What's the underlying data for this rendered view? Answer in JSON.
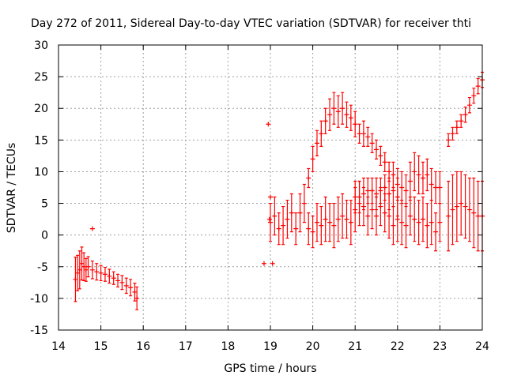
{
  "chart_data": {
    "type": "scatter",
    "title": "Day 272 of 2011, Sidereal Day-to-day VTEC variation (SDTVAR) for receiver thti",
    "xlabel": "GPS time / hours",
    "ylabel": "SDTVAR / TECUs",
    "xlim": [
      14,
      24
    ],
    "ylim": [
      -15,
      30
    ],
    "x_ticks": [
      "14",
      "15",
      "16",
      "17",
      "18",
      "19",
      "20",
      "21",
      "22",
      "23",
      "24"
    ],
    "y_ticks": [
      "-15",
      "-10",
      "-5",
      "0",
      "5",
      "10",
      "15",
      "20",
      "25",
      "30"
    ],
    "grid": true,
    "marker": "+",
    "color": "#ff0000",
    "series": [
      {
        "x": [
          14.4,
          14.45,
          14.5,
          14.55,
          14.6,
          14.65,
          14.7,
          14.8,
          14.9,
          15.0,
          15.1,
          15.2,
          15.3,
          15.4,
          15.5,
          15.6,
          15.7,
          15.8,
          15.85
        ],
        "y": [
          -7.0,
          -6.0,
          -5.5,
          -4.5,
          -5.0,
          -5.5,
          -5.0,
          -5.5,
          -5.8,
          -6.0,
          -6.2,
          -6.5,
          -6.8,
          -7.2,
          -7.5,
          -8.0,
          -8.3,
          -9.0,
          -10.0
        ],
        "err": [
          3.5,
          2.8,
          3.0,
          2.6,
          2.2,
          1.8,
          1.6,
          1.4,
          1.3,
          1.2,
          1.1,
          1.1,
          1.0,
          1.0,
          1.1,
          1.2,
          1.3,
          1.4,
          1.8
        ]
      },
      {
        "x": [
          14.8,
          18.85,
          18.95,
          18.98,
          19.0,
          19.05
        ],
        "y": [
          1.0,
          -4.5,
          17.5,
          2.5,
          6.0,
          -4.5
        ],
        "err": [
          0,
          0,
          0,
          0,
          0,
          0
        ]
      },
      {
        "x": [
          19.0,
          19.1,
          19.2,
          19.3,
          19.4,
          19.5,
          19.6,
          19.7,
          19.8,
          19.9,
          20.0,
          20.1,
          20.2,
          20.3,
          20.4,
          20.5,
          20.6,
          20.7,
          20.8,
          20.9,
          21.0,
          21.1,
          21.2,
          21.3,
          21.4,
          21.5,
          21.6,
          21.7,
          21.8,
          21.9,
          22.0,
          22.1,
          22.2,
          22.3,
          22.4,
          22.5,
          22.6,
          22.7,
          22.8,
          22.9,
          23.0
        ],
        "y": [
          2.0,
          3.0,
          1.0,
          1.5,
          2.5,
          3.5,
          1.0,
          3.5,
          5.0,
          1.0,
          0.5,
          2.0,
          1.5,
          2.5,
          2.0,
          1.5,
          2.5,
          3.0,
          2.5,
          2.0,
          4.0,
          5.0,
          4.5,
          3.0,
          4.0,
          3.0,
          4.5,
          3.5,
          3.0,
          1.5,
          2.5,
          2.0,
          1.5,
          3.0,
          2.5,
          2.0,
          2.5,
          1.5,
          2.0,
          0.5,
          2.0
        ],
        "err": [
          3.0,
          3.0,
          2.5,
          3.0,
          3.0,
          3.0,
          2.5,
          3.0,
          3.0,
          2.5,
          2.5,
          3.0,
          3.0,
          3.5,
          3.0,
          3.5,
          3.5,
          3.5,
          3.0,
          3.5,
          3.5,
          3.5,
          3.0,
          3.0,
          3.0,
          3.0,
          3.0,
          3.0,
          3.5,
          3.0,
          3.5,
          3.5,
          3.5,
          3.0,
          3.5,
          3.5,
          3.5,
          3.5,
          3.5,
          3.0,
          3.0
        ]
      },
      {
        "x": [
          19.9,
          20.0,
          20.1,
          20.2,
          20.3,
          20.4,
          20.5,
          20.6,
          20.7,
          20.8,
          20.9,
          21.0,
          21.1,
          21.2,
          21.3,
          21.4,
          21.5,
          21.6,
          21.7,
          21.8,
          21.9,
          22.0,
          22.1,
          22.2,
          22.3,
          22.4,
          22.5,
          22.6,
          22.7,
          22.8,
          22.9,
          23.0
        ],
        "y": [
          9.0,
          12.0,
          14.5,
          16.0,
          18.0,
          19.0,
          20.0,
          19.5,
          20.0,
          19.0,
          18.5,
          17.5,
          16.0,
          16.0,
          15.5,
          14.5,
          13.5,
          12.5,
          11.5,
          10.0,
          9.5,
          8.0,
          7.5,
          7.0,
          8.5,
          10.0,
          9.5,
          9.0,
          9.5,
          8.0,
          7.5,
          7.5
        ],
        "err": [
          1.5,
          2.0,
          2.0,
          2.0,
          2.0,
          2.5,
          2.5,
          2.5,
          2.5,
          2.0,
          2.0,
          2.0,
          1.5,
          2.0,
          1.5,
          1.5,
          1.5,
          1.5,
          1.5,
          1.5,
          2.0,
          2.5,
          2.5,
          2.5,
          3.0,
          3.0,
          3.0,
          2.5,
          2.5,
          2.5,
          2.5,
          2.5
        ]
      },
      {
        "x": [
          21.0,
          21.1,
          21.2,
          21.3,
          21.4,
          21.5,
          21.6,
          21.7,
          21.8,
          21.9,
          22.0
        ],
        "y": [
          6.0,
          6.0,
          6.5,
          7.0,
          7.0,
          6.5,
          7.0,
          7.5,
          6.5,
          7.0,
          6.0
        ],
        "err": [
          2.5,
          2.5,
          2.5,
          2.0,
          2.0,
          2.5,
          2.0,
          2.0,
          2.5,
          2.5,
          3.0
        ]
      },
      {
        "x": [
          23.2,
          23.3,
          23.4,
          23.5,
          23.6,
          23.7,
          23.8,
          23.9,
          24.0
        ],
        "y": [
          3.0,
          4.0,
          4.5,
          5.0,
          4.5,
          4.0,
          3.5,
          3.0,
          3.0
        ],
        "err": [
          5.5,
          5.5,
          5.5,
          5.0,
          5.0,
          5.0,
          5.5,
          5.5,
          5.5
        ]
      },
      {
        "x": [
          23.2,
          23.3,
          23.4,
          23.5,
          23.6,
          23.7,
          23.8,
          23.9,
          24.0
        ],
        "y": [
          15.0,
          16.0,
          17.0,
          18.0,
          19.0,
          20.5,
          22.0,
          23.5,
          24.5
        ],
        "err": [
          1.0,
          1.0,
          1.0,
          1.0,
          1.2,
          1.2,
          1.2,
          1.2,
          1.2
        ]
      }
    ]
  }
}
